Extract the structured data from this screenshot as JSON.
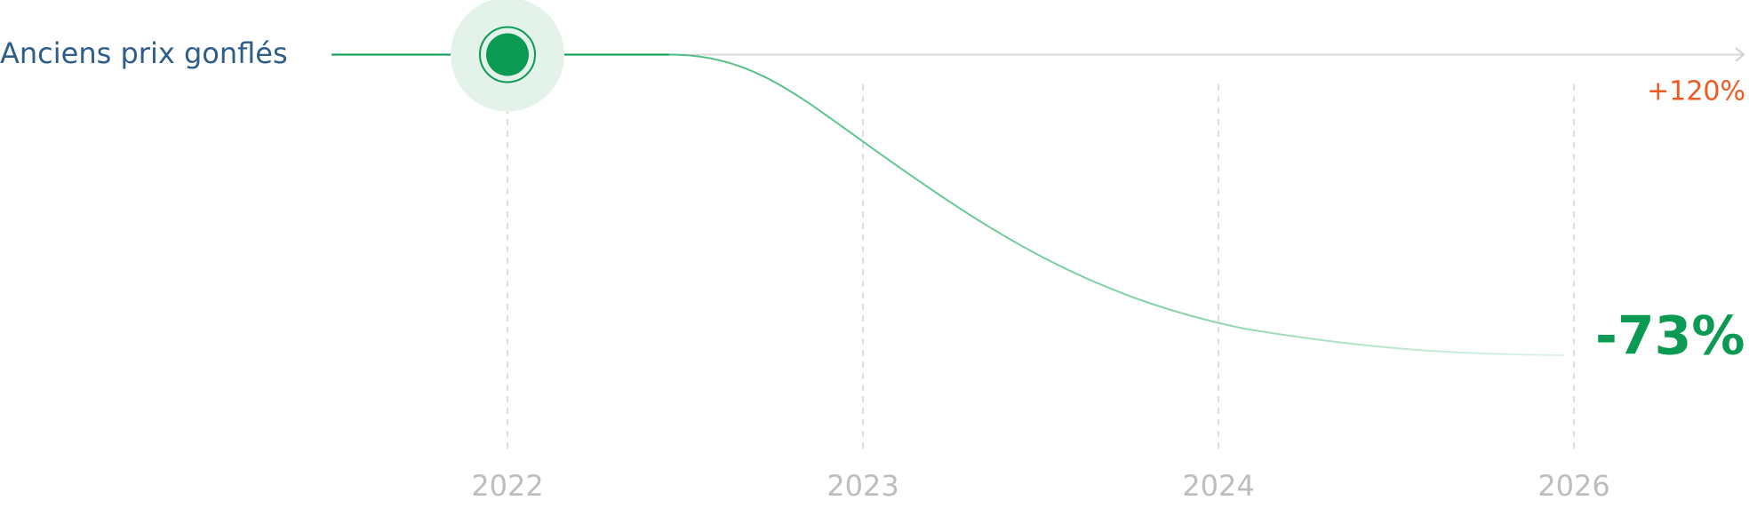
{
  "chart_data": {
    "type": "line",
    "series_label": "Anciens prix gonflés",
    "categories": [
      "2022",
      "2023",
      "2024",
      "2026"
    ],
    "annotations": [
      "+120%",
      "-73%"
    ]
  }
}
